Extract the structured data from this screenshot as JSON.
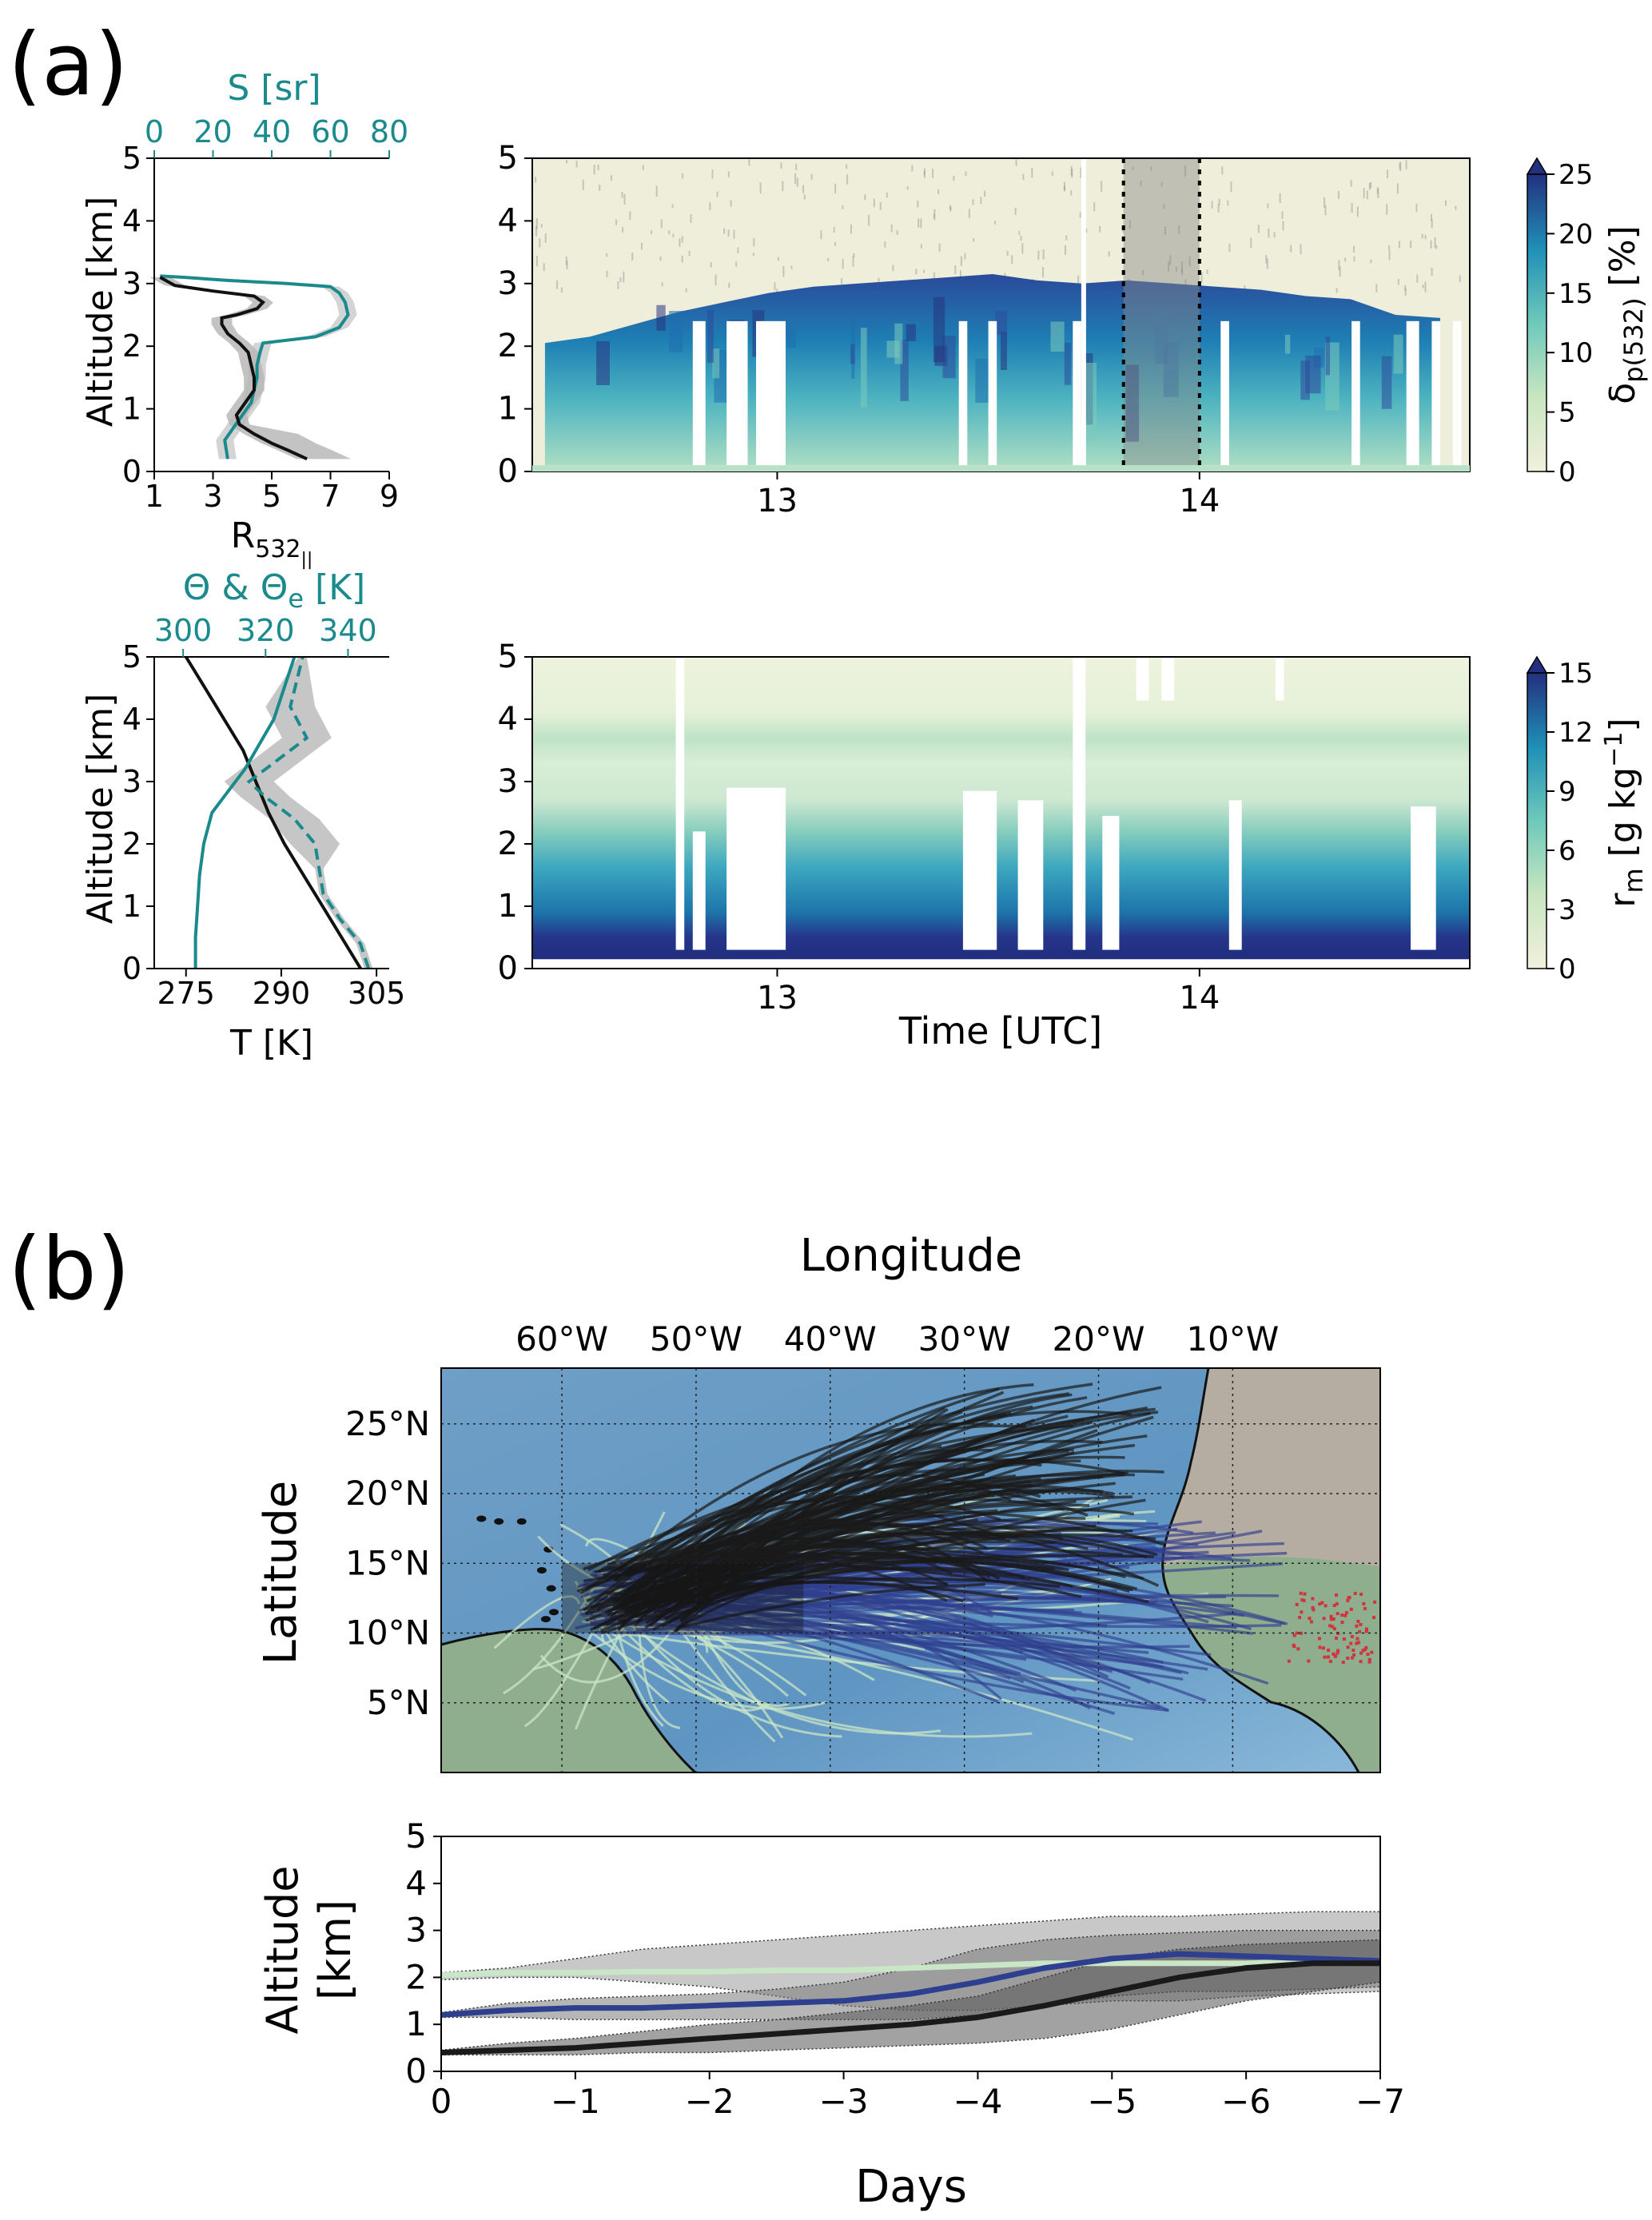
{
  "panel_labels": {
    "a": "(a)",
    "b": "(b)"
  },
  "colors": {
    "teal": "#1a8a8c",
    "black": "#111111",
    "gray_band": "#b8b8b8",
    "ocean": "#6a9fc9",
    "land": "#b8afa4",
    "land_green": "#8fae8e",
    "traj_black": "#1a1a1a",
    "traj_blue": "#2f3f8f",
    "traj_green": "#c9e6c6",
    "dust_red": "#d0343d"
  },
  "chart_data": [
    {
      "id": "lidar-profile",
      "type": "line",
      "xlabel_bottom_main": "R",
      "xlabel_bottom_sub": "532",
      "xlabel_bottom_sub2": "||",
      "xlabel_top": "S [sr]",
      "ylabel": "Altitude [km]",
      "xlim_bottom": [
        1,
        9
      ],
      "xlim_top": [
        0,
        80
      ],
      "ylim": [
        0,
        5
      ],
      "xticks_bottom": [
        "1",
        "3",
        "5",
        "7",
        "9"
      ],
      "xticks_top": [
        "0",
        "20",
        "40",
        "60",
        "80"
      ],
      "yticks": [
        "0",
        "1",
        "2",
        "3",
        "4",
        "5"
      ],
      "series": [
        {
          "name": "",
          "color": "black",
          "x": [
            6.2,
            5.5,
            5.0,
            4.4,
            3.9,
            3.8,
            4.1,
            4.4,
            4.4,
            4.3,
            4.2,
            3.9,
            3.5,
            3.3,
            3.3,
            3.8,
            4.5,
            4.7,
            4.4,
            3.0,
            1.7,
            1.2
          ],
          "y": [
            0.2,
            0.35,
            0.45,
            0.6,
            0.75,
            0.9,
            1.1,
            1.3,
            1.5,
            1.7,
            1.9,
            2.05,
            2.2,
            2.35,
            2.45,
            2.5,
            2.6,
            2.7,
            2.8,
            2.88,
            2.97,
            3.1
          ]
        },
        {
          "name": "",
          "color": "teal",
          "x": [
            25,
            24,
            27,
            30,
            33,
            34,
            35,
            35,
            36,
            37,
            55,
            63,
            66,
            65,
            63,
            60,
            45,
            25,
            10,
            2
          ],
          "y": [
            0.2,
            0.5,
            0.7,
            0.9,
            1.1,
            1.3,
            1.5,
            1.7,
            1.9,
            2.05,
            2.15,
            2.3,
            2.5,
            2.7,
            2.85,
            2.95,
            3.0,
            3.05,
            3.1,
            3.12
          ]
        }
      ]
    },
    {
      "id": "depol-curtain",
      "type": "heatmap",
      "xlim": [
        12.42,
        14.64
      ],
      "ylim": [
        0,
        5
      ],
      "xticks": [
        "13",
        "14"
      ],
      "yticks": [
        "0",
        "1",
        "2",
        "3",
        "4",
        "5"
      ],
      "colorbar": {
        "label_main": "δ",
        "label_sub": "p(532)",
        "label_unit": " [%]",
        "ticks": [
          "0",
          "5",
          "10",
          "15",
          "20",
          "25"
        ],
        "range": [
          0,
          25
        ]
      },
      "highlight_window": [
        13.82,
        14.0
      ],
      "layer_top_km": [
        2.05,
        2.15,
        2.35,
        2.55,
        2.7,
        2.85,
        2.95,
        3.0,
        3.05,
        3.1,
        3.15,
        3.05,
        3.0,
        3.05,
        3.0,
        2.95,
        2.9,
        2.8,
        2.75,
        2.5,
        2.45
      ]
    },
    {
      "id": "temperature-profile",
      "type": "line",
      "xlabel_bottom": "T [K]",
      "xlabel_top_a": "Θ & Θ",
      "xlabel_top_sub": "e",
      "xlabel_top_b": " [K]",
      "ylabel": "Altitude [km]",
      "xlim_bottom": [
        270,
        307
      ],
      "xlim_top": [
        293,
        350
      ],
      "ylim": [
        0,
        5
      ],
      "xticks_bottom": [
        "275",
        "290",
        "305"
      ],
      "xticks_top": [
        "300",
        "320",
        "340"
      ],
      "yticks": [
        "0",
        "1",
        "2",
        "3",
        "4",
        "5"
      ],
      "series": [
        {
          "name": "",
          "color": "black",
          "axis": "bottom",
          "x": [
            302.5,
            299.5,
            296.5,
            293.5,
            290.5,
            288,
            286,
            284,
            281,
            278,
            275
          ],
          "y": [
            0,
            0.5,
            1.0,
            1.5,
            2.0,
            2.5,
            3.0,
            3.5,
            4.0,
            4.5,
            5.0
          ]
        },
        {
          "name": "",
          "color": "teal",
          "axis": "top",
          "x": [
            303,
            303,
            303.5,
            304,
            305,
            307,
            311,
            315,
            318.5,
            322,
            324.5,
            327
          ],
          "y": [
            0,
            0.5,
            1.0,
            1.5,
            2.0,
            2.5,
            2.85,
            3.2,
            3.6,
            4.0,
            4.5,
            5.0
          ]
        },
        {
          "name": "",
          "color": "teal",
          "dashed": true,
          "axis": "top",
          "x": [
            345,
            343,
            338,
            334,
            333,
            332,
            327,
            320,
            316,
            322,
            330,
            326,
            329
          ],
          "y": [
            0,
            0.4,
            0.8,
            1.2,
            1.6,
            2.0,
            2.4,
            2.75,
            3.0,
            3.3,
            3.7,
            4.2,
            5.0
          ]
        }
      ]
    },
    {
      "id": "humidity-curtain",
      "type": "heatmap",
      "xlabel": "Time [UTC]",
      "xlim": [
        12.42,
        14.64
      ],
      "ylim": [
        0,
        5
      ],
      "xticks": [
        "13",
        "14"
      ],
      "yticks": [
        "0",
        "1",
        "2",
        "3",
        "4",
        "5"
      ],
      "colorbar": {
        "label_main": "r",
        "label_sub": "m",
        "label_unit": " [g kg",
        "label_sup": "−1",
        "label_end": "]",
        "ticks": [
          "0",
          "3",
          "6",
          "9",
          "12",
          "15"
        ],
        "range": [
          0,
          15
        ]
      }
    },
    {
      "id": "trajectory-map",
      "type": "scatter",
      "xlabel": "Longitude",
      "ylabel": "Latitude",
      "xlim": [
        -69,
        1
      ],
      "ylim": [
        0,
        29
      ],
      "xticks": [
        "60°W",
        "50°W",
        "40°W",
        "30°W",
        "20°W",
        "10°W"
      ],
      "yticks": [
        "5°N",
        "10°N",
        "15°N",
        "20°N",
        "25°N"
      ]
    },
    {
      "id": "trajectory-altitude",
      "type": "area",
      "xlabel": "Days",
      "ylabel_line1": "Altitude",
      "ylabel_line2": "[km]",
      "xlim": [
        0,
        -7
      ],
      "ylim": [
        0,
        5
      ],
      "xticks": [
        "0",
        "−1",
        "−2",
        "−3",
        "−4",
        "−5",
        "−6",
        "−7"
      ],
      "yticks": [
        "0",
        "1",
        "2",
        "3",
        "4",
        "5"
      ],
      "x": [
        0,
        -0.5,
        -1,
        -1.5,
        -2,
        -2.5,
        -3,
        -3.5,
        -4,
        -4.5,
        -5,
        -5.5,
        -6,
        -6.5,
        -7
      ],
      "series": [
        {
          "name": "",
          "color": "traj_green",
          "mean": [
            2.05,
            2.1,
            2.1,
            2.12,
            2.12,
            2.15,
            2.15,
            2.2,
            2.25,
            2.3,
            2.3,
            2.3,
            2.3,
            2.35,
            2.35
          ],
          "lower": [
            1.95,
            2.0,
            2.0,
            1.9,
            1.8,
            1.6,
            1.4,
            1.3,
            1.3,
            1.4,
            1.5,
            1.5,
            1.6,
            1.65,
            1.7
          ],
          "upper": [
            2.1,
            2.2,
            2.4,
            2.6,
            2.7,
            2.8,
            2.9,
            3.0,
            3.1,
            3.2,
            3.3,
            3.3,
            3.35,
            3.4,
            3.4
          ]
        },
        {
          "name": "",
          "color": "traj_blue",
          "mean": [
            1.2,
            1.3,
            1.35,
            1.35,
            1.4,
            1.45,
            1.5,
            1.65,
            1.9,
            2.2,
            2.4,
            2.5,
            2.45,
            2.4,
            2.35
          ],
          "lower": [
            1.15,
            1.15,
            1.1,
            1.1,
            1.1,
            1.1,
            1.1,
            1.1,
            1.2,
            1.4,
            1.6,
            1.7,
            1.7,
            1.75,
            1.8
          ],
          "upper": [
            1.25,
            1.45,
            1.55,
            1.6,
            1.65,
            1.75,
            1.9,
            2.2,
            2.6,
            2.8,
            2.9,
            2.95,
            3.0,
            3.0,
            3.0
          ]
        },
        {
          "name": "",
          "color": "traj_black",
          "mean": [
            0.4,
            0.45,
            0.5,
            0.6,
            0.7,
            0.8,
            0.9,
            1.0,
            1.15,
            1.4,
            1.7,
            2.0,
            2.2,
            2.3,
            2.3
          ],
          "lower": [
            0.35,
            0.35,
            0.35,
            0.4,
            0.4,
            0.45,
            0.5,
            0.55,
            0.6,
            0.7,
            0.9,
            1.2,
            1.5,
            1.7,
            1.9
          ],
          "upper": [
            0.45,
            0.6,
            0.7,
            0.85,
            1.0,
            1.1,
            1.25,
            1.4,
            1.6,
            2.0,
            2.4,
            2.6,
            2.7,
            2.75,
            2.8
          ]
        }
      ]
    }
  ]
}
